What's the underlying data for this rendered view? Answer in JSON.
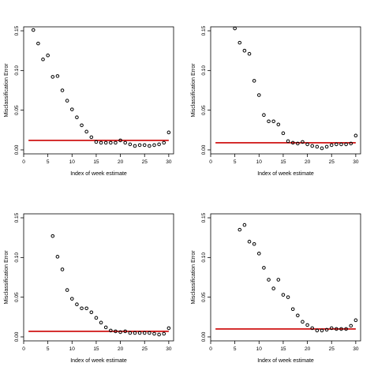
{
  "chart_data": [
    {
      "type": "scatter",
      "xlabel": "Index of week estimate",
      "ylabel": "Misclassification Error",
      "xlim": [
        0,
        31
      ],
      "ylim": [
        -0.005,
        0.155
      ],
      "x_ticks": [
        0,
        5,
        10,
        15,
        20,
        25,
        30
      ],
      "y_ticks": [
        0.0,
        0.05,
        0.1,
        0.15
      ],
      "x_tick_labels": [
        "0",
        "5",
        "10",
        "15",
        "20",
        "25",
        "30"
      ],
      "y_tick_labels": [
        "0.00",
        "0.05",
        "0.10",
        "0.15"
      ],
      "grid": false,
      "reference_line": {
        "y": 0.012,
        "x_from": 1,
        "x_to": 30,
        "color": "#cc0000"
      },
      "points": {
        "x": [
          2,
          3,
          4,
          5,
          6,
          7,
          8,
          9,
          10,
          11,
          12,
          13,
          14,
          15,
          16,
          17,
          18,
          19,
          20,
          21,
          22,
          23,
          24,
          25,
          26,
          27,
          28,
          29,
          30
        ],
        "y": [
          0.151,
          0.134,
          0.114,
          0.119,
          0.092,
          0.093,
          0.075,
          0.062,
          0.051,
          0.041,
          0.031,
          0.023,
          0.016,
          0.01,
          0.009,
          0.009,
          0.009,
          0.009,
          0.012,
          0.009,
          0.007,
          0.005,
          0.006,
          0.006,
          0.005,
          0.006,
          0.007,
          0.009,
          0.022
        ]
      }
    },
    {
      "type": "scatter",
      "xlabel": "Index of week estimate",
      "ylabel": "Misclassification Error",
      "xlim": [
        0,
        31
      ],
      "ylim": [
        -0.005,
        0.155
      ],
      "x_ticks": [
        0,
        5,
        10,
        15,
        20,
        25,
        30
      ],
      "y_ticks": [
        0.0,
        0.05,
        0.1,
        0.15
      ],
      "x_tick_labels": [
        "0",
        "5",
        "10",
        "15",
        "20",
        "25",
        "30"
      ],
      "y_tick_labels": [
        "0.00",
        "0.05",
        "0.10",
        "0.15"
      ],
      "grid": false,
      "reference_line": {
        "y": 0.009,
        "x_from": 1,
        "x_to": 30,
        "color": "#cc0000"
      },
      "points": {
        "x": [
          5,
          6,
          7,
          8,
          9,
          10,
          11,
          12,
          13,
          14,
          15,
          16,
          17,
          18,
          19,
          20,
          21,
          22,
          23,
          24,
          25,
          26,
          27,
          28,
          29,
          30
        ],
        "y": [
          0.153,
          0.135,
          0.125,
          0.121,
          0.087,
          0.069,
          0.044,
          0.036,
          0.036,
          0.032,
          0.021,
          0.011,
          0.009,
          0.008,
          0.01,
          0.007,
          0.005,
          0.004,
          0.002,
          0.004,
          0.006,
          0.007,
          0.007,
          0.007,
          0.008,
          0.018
        ]
      }
    },
    {
      "type": "scatter",
      "xlabel": "Index of week estimate",
      "ylabel": "Misclassification Error",
      "xlim": [
        0,
        31
      ],
      "ylim": [
        -0.005,
        0.155
      ],
      "x_ticks": [
        0,
        5,
        10,
        15,
        20,
        25,
        30
      ],
      "y_ticks": [
        0.0,
        0.05,
        0.1,
        0.15
      ],
      "x_tick_labels": [
        "0",
        "5",
        "10",
        "15",
        "20",
        "25",
        "30"
      ],
      "y_tick_labels": [
        "0.00",
        "0.05",
        "0.10",
        "0.15"
      ],
      "grid": false,
      "reference_line": {
        "y": 0.007,
        "x_from": 1,
        "x_to": 30,
        "color": "#cc0000"
      },
      "points": {
        "x": [
          6,
          7,
          8,
          9,
          10,
          11,
          12,
          13,
          14,
          15,
          16,
          17,
          18,
          19,
          20,
          21,
          22,
          23,
          24,
          25,
          26,
          27,
          28,
          29,
          30
        ],
        "y": [
          0.127,
          0.101,
          0.085,
          0.059,
          0.048,
          0.041,
          0.036,
          0.036,
          0.031,
          0.024,
          0.018,
          0.012,
          0.008,
          0.007,
          0.006,
          0.007,
          0.005,
          0.005,
          0.005,
          0.005,
          0.005,
          0.004,
          0.003,
          0.004,
          0.011
        ]
      }
    },
    {
      "type": "scatter",
      "xlabel": "Index of week estimate",
      "ylabel": "Misclassification Error",
      "xlim": [
        0,
        31
      ],
      "ylim": [
        -0.005,
        0.155
      ],
      "x_ticks": [
        0,
        5,
        10,
        15,
        20,
        25,
        30
      ],
      "y_ticks": [
        0.0,
        0.05,
        0.1,
        0.15
      ],
      "x_tick_labels": [
        "0",
        "5",
        "10",
        "15",
        "20",
        "25",
        "30"
      ],
      "y_tick_labels": [
        "0.00",
        "0.05",
        "0.10",
        "0.15"
      ],
      "grid": false,
      "reference_line": {
        "y": 0.01,
        "x_from": 1,
        "x_to": 30,
        "color": "#cc0000"
      },
      "points": {
        "x": [
          6,
          7,
          8,
          9,
          10,
          11,
          12,
          13,
          14,
          15,
          16,
          17,
          18,
          19,
          20,
          21,
          22,
          23,
          24,
          25,
          26,
          27,
          28,
          29,
          30
        ],
        "y": [
          0.135,
          0.141,
          0.12,
          0.117,
          0.105,
          0.087,
          0.072,
          0.061,
          0.072,
          0.053,
          0.05,
          0.035,
          0.027,
          0.019,
          0.015,
          0.011,
          0.008,
          0.008,
          0.009,
          0.011,
          0.01,
          0.01,
          0.01,
          0.014,
          0.021
        ]
      }
    }
  ]
}
